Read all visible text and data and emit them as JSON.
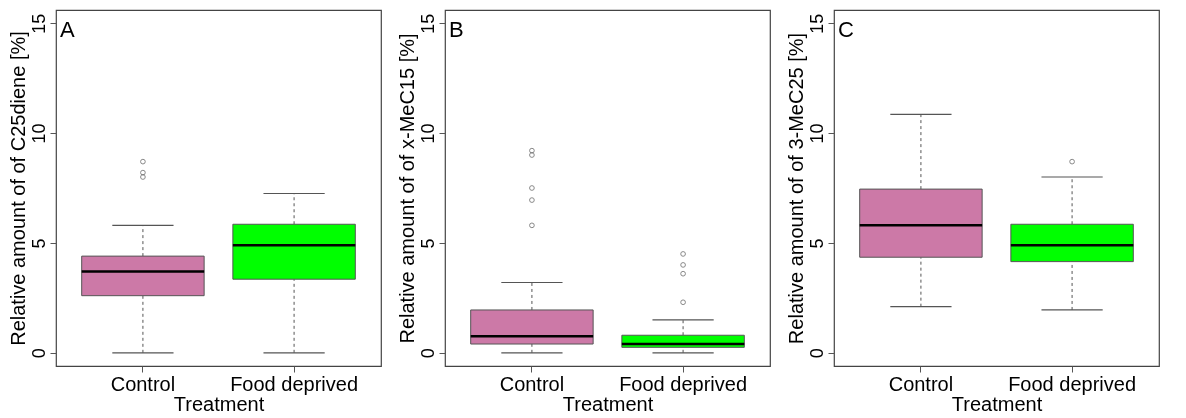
{
  "chart_data": [
    {
      "type": "box",
      "annotations": [
        "A"
      ],
      "categories": [
        "Control",
        "Food deprived"
      ],
      "colors": [
        "#cc79a7",
        "#00ff00"
      ],
      "xlabel": "Treatment",
      "ylabel": "Relative amount of of C25diene [%]",
      "ylim": [
        -0.6,
        15.6
      ],
      "yticks": [
        0,
        5,
        10,
        15
      ],
      "grid": false,
      "boxes": [
        {
          "low": 0,
          "q1": 2.6,
          "median": 3.7,
          "q3": 4.4,
          "high": 5.8,
          "outliers": [
            8.0,
            8.2,
            8.7
          ]
        },
        {
          "low": 0,
          "q1": 3.35,
          "median": 4.9,
          "q3": 5.85,
          "high": 7.25
        }
      ]
    },
    {
      "type": "box",
      "annotations": [
        "B"
      ],
      "categories": [
        "Control",
        "Food deprived"
      ],
      "colors": [
        "#cc79a7",
        "#00ff00"
      ],
      "xlabel": "Treatment",
      "ylabel": "Relative amount of of x-MeC15 [%]",
      "ylim": [
        -0.6,
        15.6
      ],
      "yticks": [
        0,
        5,
        10,
        15
      ],
      "grid": false,
      "boxes": [
        {
          "low": 0,
          "q1": 0.4,
          "median": 0.75,
          "q3": 1.95,
          "high": 3.2,
          "outliers": [
            5.8,
            6.95,
            7.5,
            9.0,
            9.2
          ]
        },
        {
          "low": 0,
          "q1": 0.25,
          "median": 0.4,
          "q3": 0.8,
          "high": 1.5,
          "outliers": [
            2.3,
            3.6,
            4.0,
            4.5
          ]
        }
      ]
    },
    {
      "type": "box",
      "annotations": [
        "C"
      ],
      "categories": [
        "Control",
        "Food deprived"
      ],
      "colors": [
        "#cc79a7",
        "#00ff00"
      ],
      "xlabel": "Treatment",
      "ylabel": "Relative amount of of 3-MeC25 [%]",
      "ylim": [
        -0.6,
        15.6
      ],
      "yticks": [
        0,
        5,
        10,
        15
      ],
      "grid": false,
      "boxes": [
        {
          "low": 2.1,
          "q1": 4.35,
          "median": 5.8,
          "q3": 7.45,
          "high": 10.85
        },
        {
          "low": 1.95,
          "q1": 4.15,
          "median": 4.9,
          "q3": 5.85,
          "high": 8.0,
          "outliers": [
            8.7
          ]
        }
      ]
    }
  ]
}
